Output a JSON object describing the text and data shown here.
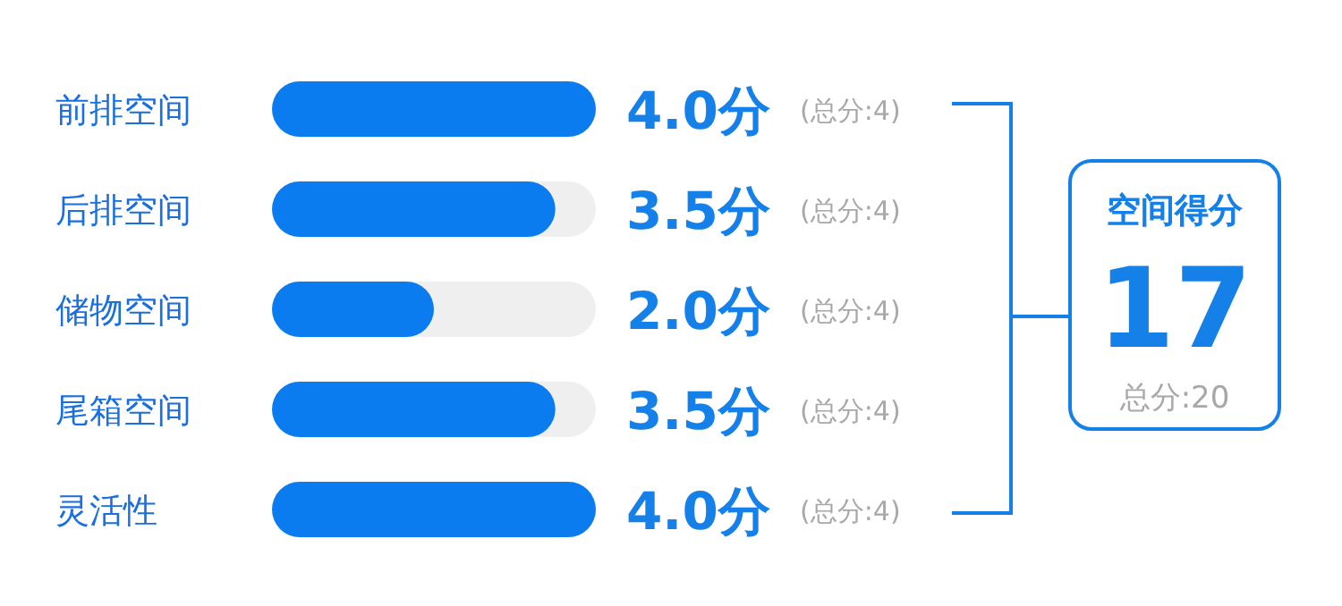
{
  "chart_data": {
    "type": "bar",
    "orientation": "horizontal",
    "categories": [
      "前排空间",
      "后排空间",
      "储物空间",
      "尾箱空间",
      "灵活性"
    ],
    "values": [
      4.0,
      3.5,
      2.0,
      3.5,
      4.0
    ],
    "value_labels": [
      "4.0分",
      "3.5分",
      "2.0分",
      "3.5分",
      "4.0分"
    ],
    "color": "#0a7cf0",
    "xlim": [
      0,
      4
    ],
    "annotations": [
      "(总分:4)",
      "(总分:4)",
      "(总分:4)",
      "(总分:4)",
      "(总分:4)",
      "空间得分",
      "17",
      "总分:20"
    ]
  }
}
